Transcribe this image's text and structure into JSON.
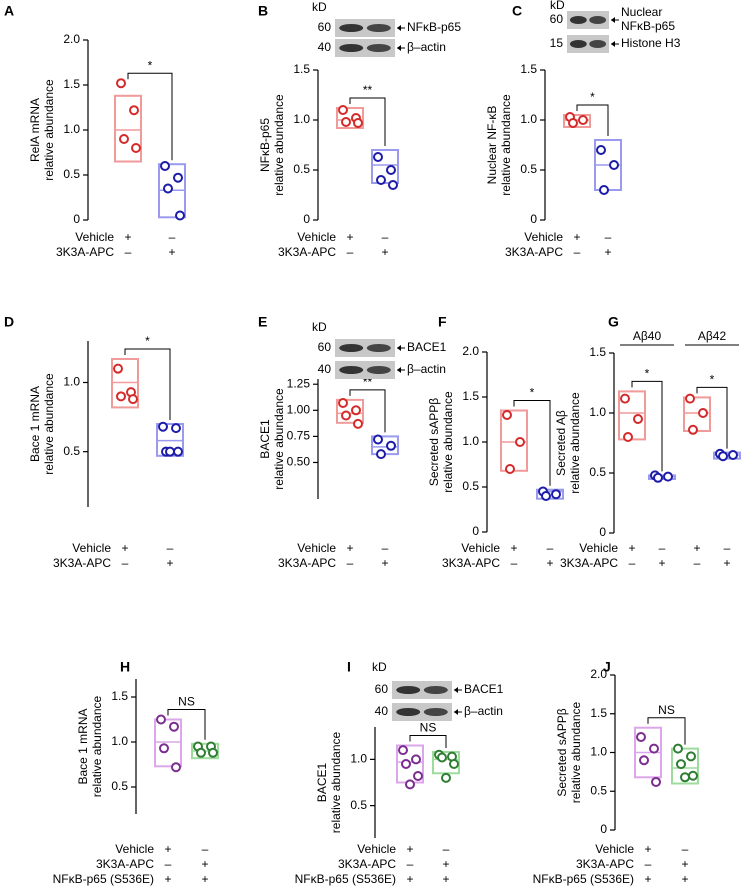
{
  "chart_data": [
    {
      "type": "box",
      "label": "A",
      "ylabel": [
        "RelA mRNA",
        "relative abundance"
      ],
      "ylim": [
        0,
        2
      ],
      "yticks": [
        0,
        0.5,
        {
          "value": 1,
          "label": "1.0"
        },
        1.5,
        {
          "value": 2,
          "label": "2.0"
        }
      ],
      "groups": [
        {
          "color": "#d42a2a",
          "box_color": "#f19a9a",
          "box": [
            0.65,
            1.0,
            1.38
          ],
          "values": [
            1.52,
            1.22,
            0.9,
            0.8
          ]
        },
        {
          "color": "#1c1ca8",
          "box_color": "#9a9aee",
          "box": [
            0.03,
            0.33,
            0.62
          ],
          "values": [
            0.6,
            0.47,
            0.35,
            0.05
          ]
        }
      ],
      "significance": [
        "*"
      ],
      "conditions": [
        {
          "name": "Vehicle",
          "signs": [
            "+",
            "–"
          ]
        },
        {
          "name": "3K3A-APC",
          "signs": [
            "–",
            "+"
          ]
        }
      ]
    },
    {
      "type": "box",
      "label": "B",
      "ylabel": [
        "NFκB-p65",
        "relative abundance"
      ],
      "ylim": [
        0,
        1.5
      ],
      "yticks": [
        0,
        0.5,
        {
          "value": 1,
          "label": "1.0"
        },
        1.5
      ],
      "blot": {
        "unit": "kD",
        "bands": [
          {
            "mw": 60,
            "label": "NFκB-p65"
          },
          {
            "mw": 40,
            "label": "β–actin"
          }
        ]
      },
      "groups": [
        {
          "color": "#d42a2a",
          "box_color": "#f19a9a",
          "box": [
            0.92,
            1.0,
            1.12
          ],
          "values": [
            1.1,
            1.02,
            0.98,
            0.97
          ]
        },
        {
          "color": "#1c1ca8",
          "box_color": "#9a9aee",
          "box": [
            0.37,
            0.55,
            0.7
          ],
          "values": [
            0.63,
            0.5,
            0.4,
            0.35
          ]
        }
      ],
      "significance": [
        "**"
      ],
      "conditions": [
        {
          "name": "Vehicle",
          "signs": [
            "+",
            "–"
          ]
        },
        {
          "name": "3K3A-APC",
          "signs": [
            "–",
            "+"
          ]
        }
      ]
    },
    {
      "type": "box",
      "label": "C",
      "ylabel": [
        "Nuclear NF-κB",
        "relative abundance"
      ],
      "ylim": [
        0,
        1.5
      ],
      "yticks": [
        0,
        0.5,
        {
          "value": 1,
          "label": "1.0"
        },
        1.5
      ],
      "blot": {
        "unit": "kD",
        "bands": [
          {
            "mw": 60,
            "label": [
              "Nuclear",
              "NFκB-p65"
            ]
          },
          {
            "mw": 15,
            "label": "Histone H3"
          }
        ]
      },
      "groups": [
        {
          "color": "#d42a2a",
          "box_color": "#f19a9a",
          "box": [
            0.93,
            1.0,
            1.05
          ],
          "values": [
            1.03,
            1.0,
            0.97
          ]
        },
        {
          "color": "#1c1ca8",
          "box_color": "#9a9aee",
          "box": [
            0.3,
            0.55,
            0.8
          ],
          "values": [
            0.7,
            0.55,
            0.3
          ]
        }
      ],
      "significance": [
        "*"
      ],
      "conditions": [
        {
          "name": "Vehicle",
          "signs": [
            "+",
            "–"
          ]
        },
        {
          "name": "3K3A-APC",
          "signs": [
            "–",
            "+"
          ]
        }
      ]
    },
    {
      "type": "box",
      "label": "D",
      "ylabel": [
        "Bace 1 mRNA",
        "relative abundance"
      ],
      "ylim": [
        0.1,
        1.3
      ],
      "yticks": [
        0.5,
        {
          "value": 1,
          "label": "1.0"
        }
      ],
      "groups": [
        {
          "color": "#d42a2a",
          "box_color": "#f19a9a",
          "box": [
            0.82,
            1.0,
            1.17
          ],
          "values": [
            1.1,
            0.93,
            0.9,
            0.88
          ]
        },
        {
          "color": "#1c1ca8",
          "box_color": "#9a9aee",
          "box": [
            0.47,
            0.58,
            0.7
          ],
          "values": [
            0.68,
            0.67,
            0.5,
            0.5,
            0.5
          ]
        }
      ],
      "significance": [
        "*"
      ],
      "conditions": [
        {
          "name": "Vehicle",
          "signs": [
            "+",
            "–"
          ]
        },
        {
          "name": "3K3A-APC",
          "signs": [
            "–",
            "+"
          ]
        }
      ]
    },
    {
      "type": "box",
      "label": "E",
      "ylabel": [
        "BACE1",
        "relative abundance"
      ],
      "ylim": [
        0.15,
        1.3
      ],
      "yticks": [
        {
          "value": 0.5,
          "label": "0.50"
        },
        0.75,
        {
          "value": 1,
          "label": "1.00"
        },
        1.25
      ],
      "blot": {
        "unit": "kD",
        "bands": [
          {
            "mw": 60,
            "label": "BACE1"
          },
          {
            "mw": 40,
            "label": "β–actin"
          }
        ]
      },
      "groups": [
        {
          "color": "#d42a2a",
          "box_color": "#f19a9a",
          "box": [
            0.88,
            0.97,
            1.1
          ],
          "values": [
            1.07,
            1.0,
            0.95,
            0.87
          ]
        },
        {
          "color": "#1c1ca8",
          "box_color": "#9a9aee",
          "box": [
            0.58,
            0.65,
            0.75
          ],
          "values": [
            0.72,
            0.66,
            0.58
          ]
        }
      ],
      "significance": [
        "**"
      ],
      "conditions": [
        {
          "name": "Vehicle",
          "signs": [
            "+",
            "–"
          ]
        },
        {
          "name": "3K3A-APC",
          "signs": [
            "–",
            "+"
          ]
        }
      ]
    },
    {
      "type": "box",
      "label": "F",
      "ylabel": [
        "Secreted sAPPβ",
        "relative abundance"
      ],
      "ylim": [
        0,
        2
      ],
      "yticks": [
        0,
        0.5,
        {
          "value": 1,
          "label": "1.0"
        },
        1.5,
        {
          "value": 2,
          "label": "2.0"
        }
      ],
      "groups": [
        {
          "color": "#d42a2a",
          "box_color": "#f19a9a",
          "box": [
            0.68,
            1.0,
            1.35
          ],
          "values": [
            1.3,
            1.0,
            0.7
          ]
        },
        {
          "color": "#1c1ca8",
          "box_color": "#9a9aee",
          "box": [
            0.37,
            0.45,
            0.47
          ],
          "values": [
            0.45,
            0.42,
            0.4
          ]
        }
      ],
      "significance": [
        "*"
      ],
      "conditions": [
        {
          "name": "Vehicle",
          "signs": [
            "+",
            "–"
          ]
        },
        {
          "name": "3K3A-APC",
          "signs": [
            "–",
            "+"
          ]
        }
      ]
    },
    {
      "type": "box",
      "label": "G",
      "ylabel": [
        "Secreted Aβ",
        "relative abundance"
      ],
      "ylim": [
        0,
        1.5
      ],
      "yticks": [
        0,
        0.5,
        {
          "value": 1,
          "label": "1.0"
        },
        1.5
      ],
      "subgroups": [
        "Aβ40",
        "Aβ42"
      ],
      "groups": [
        {
          "color": "#d42a2a",
          "box_color": "#f19a9a",
          "box": [
            0.78,
            1.0,
            1.18
          ],
          "values": [
            1.12,
            0.95,
            0.8
          ]
        },
        {
          "color": "#1c1ca8",
          "box_color": "#9a9aee",
          "box": [
            0.45,
            0.47,
            0.48
          ],
          "values": [
            0.48,
            0.47,
            0.46
          ]
        },
        {
          "color": "#d42a2a",
          "box_color": "#f19a9a",
          "box": [
            0.85,
            1.0,
            1.13
          ],
          "values": [
            1.12,
            1.0,
            0.86
          ]
        },
        {
          "color": "#1c1ca8",
          "box_color": "#9a9aee",
          "box": [
            0.62,
            0.65,
            0.67
          ],
          "values": [
            0.66,
            0.65,
            0.64
          ]
        }
      ],
      "significance": [
        "*",
        "*"
      ],
      "conditions": [
        {
          "name": "Vehicle",
          "signs": [
            "+",
            "–",
            "+",
            "–"
          ]
        },
        {
          "name": "3K3A-APC",
          "signs": [
            "–",
            "+",
            "–",
            "+"
          ]
        }
      ]
    },
    {
      "type": "box",
      "label": "H",
      "ylabel": [
        "Bace 1 mRNA",
        "relative abundance"
      ],
      "ylim": [
        0.2,
        1.7
      ],
      "yticks": [
        0.5,
        {
          "value": 1,
          "label": "1.0"
        },
        1.5
      ],
      "groups": [
        {
          "color": "#7b2d90",
          "box_color": "#dba6ea",
          "box": [
            0.73,
            1.0,
            1.25
          ],
          "values": [
            1.25,
            1.17,
            0.93,
            0.72
          ]
        },
        {
          "color": "#2e7d32",
          "box_color": "#9edc9e",
          "box": [
            0.82,
            0.9,
            0.98
          ],
          "values": [
            0.95,
            0.95,
            0.88,
            0.88
          ]
        }
      ],
      "significance": [
        "NS"
      ],
      "conditions": [
        {
          "name": "Vehicle",
          "signs": [
            "+",
            "–"
          ]
        },
        {
          "name": "3K3A-APC",
          "signs": [
            "–",
            "+"
          ]
        },
        {
          "name": "NFκB-p65 (S536E)",
          "signs": [
            "+",
            "+"
          ]
        }
      ]
    },
    {
      "type": "box",
      "label": "I",
      "ylabel": [
        "BACE1",
        "relative abundance"
      ],
      "ylim": [
        0.15,
        1.35
      ],
      "yticks": [
        0.5,
        {
          "value": 1,
          "label": "1.0"
        }
      ],
      "blot": {
        "unit": "kD",
        "bands": [
          {
            "mw": 60,
            "label": "BACE1"
          },
          {
            "mw": 40,
            "label": "β–actin"
          }
        ]
      },
      "groups": [
        {
          "color": "#7b2d90",
          "box_color": "#dba6ea",
          "box": [
            0.75,
            0.97,
            1.15
          ],
          "values": [
            1.1,
            1.0,
            0.95,
            0.82,
            0.73
          ]
        },
        {
          "color": "#2e7d32",
          "box_color": "#9edc9e",
          "box": [
            0.85,
            1.0,
            1.08
          ],
          "values": [
            1.05,
            1.03,
            1.02,
            0.95,
            0.8
          ]
        }
      ],
      "significance": [
        "NS"
      ],
      "conditions": [
        {
          "name": "Vehicle",
          "signs": [
            "+",
            "–"
          ]
        },
        {
          "name": "3K3A-APC",
          "signs": [
            "–",
            "+"
          ]
        },
        {
          "name": "NFκB-p65 (S536E)",
          "signs": [
            "+",
            "+"
          ]
        }
      ]
    },
    {
      "type": "box",
      "label": "J",
      "ylabel": [
        "Secreted sAPPβ",
        "relative abundance"
      ],
      "ylim": [
        0,
        2
      ],
      "yticks": [
        0,
        0.5,
        {
          "value": 1,
          "label": "1.0"
        },
        1.5,
        {
          "value": 2,
          "label": "2.0"
        }
      ],
      "groups": [
        {
          "color": "#7b2d90",
          "box_color": "#dba6ea",
          "box": [
            0.68,
            1.0,
            1.32
          ],
          "values": [
            1.2,
            1.05,
            0.9,
            0.62
          ]
        },
        {
          "color": "#2e7d32",
          "box_color": "#9edc9e",
          "box": [
            0.6,
            0.8,
            1.05
          ],
          "values": [
            1.05,
            0.95,
            0.85,
            0.7,
            0.68
          ]
        }
      ],
      "significance": [
        "NS"
      ],
      "conditions": [
        {
          "name": "Vehicle",
          "signs": [
            "+",
            "–"
          ]
        },
        {
          "name": "3K3A-APC",
          "signs": [
            "–",
            "+"
          ]
        },
        {
          "name": "NFκB-p65 (S536E)",
          "signs": [
            "+",
            "+"
          ]
        }
      ]
    }
  ]
}
